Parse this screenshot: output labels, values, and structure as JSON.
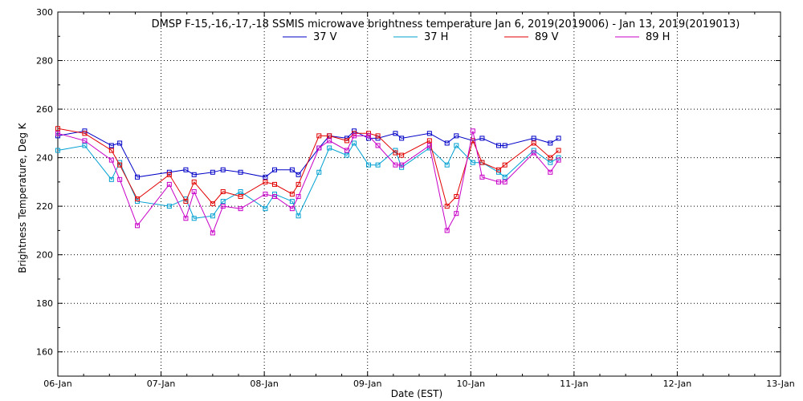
{
  "chart_data": {
    "type": "line",
    "title": "DMSP F-15,-16,-17,-18 SSMIS microwave brightness temperature Jan  6, 2019(2019006) - Jan 13, 2019(2019013)",
    "xlabel": "Date (EST)",
    "ylabel": "Brightness Temperature, Deg K",
    "xlim": [
      0,
      7
    ],
    "ylim": [
      150,
      300
    ],
    "x_unit": "days since 06-Jan-2019 00:00",
    "x_ticks": [
      0,
      1,
      2,
      3,
      4,
      5,
      6,
      7
    ],
    "x_tick_labels": [
      "06-Jan",
      "07-Jan",
      "08-Jan",
      "09-Jan",
      "10-Jan",
      "11-Jan",
      "12-Jan",
      "13-Jan"
    ],
    "y_ticks": [
      160,
      180,
      200,
      220,
      240,
      260,
      280,
      300
    ],
    "y_tick_labels": [
      "160",
      "180",
      "200",
      "220",
      "240",
      "260",
      "280",
      "300"
    ],
    "grid": true,
    "legend_position": "top-center",
    "series": [
      {
        "name": "37 V",
        "color": "#0000c8",
        "x": [
          0.0,
          0.26,
          0.52,
          0.6,
          0.77,
          1.08,
          1.24,
          1.32,
          1.5,
          1.6,
          1.77,
          2.01,
          2.1,
          2.27,
          2.33,
          2.53,
          2.63,
          2.8,
          2.87,
          3.01,
          3.1,
          3.27,
          3.33,
          3.6,
          3.77,
          3.86,
          4.02,
          4.11,
          4.27,
          4.33,
          4.61,
          4.77,
          4.85
        ],
        "y": [
          249,
          251,
          245,
          246,
          232,
          234,
          235,
          233,
          234,
          235,
          234,
          232,
          235,
          235,
          233,
          244,
          249,
          248,
          251,
          248,
          248,
          250,
          248,
          250,
          246,
          249,
          247,
          248,
          245,
          245,
          248,
          246,
          248
        ]
      },
      {
        "name": "37 H",
        "color": "#00a0d2",
        "x": [
          0.0,
          0.26,
          0.52,
          0.6,
          0.77,
          1.08,
          1.24,
          1.32,
          1.5,
          1.6,
          1.77,
          2.01,
          2.1,
          2.27,
          2.33,
          2.53,
          2.63,
          2.8,
          2.87,
          3.01,
          3.1,
          3.27,
          3.33,
          3.6,
          3.77,
          3.86,
          4.02,
          4.11,
          4.27,
          4.33,
          4.61,
          4.77,
          4.85
        ],
        "y": [
          243,
          245,
          231,
          238,
          222,
          220,
          223,
          215,
          216,
          222,
          226,
          219,
          225,
          222,
          216,
          234,
          244,
          241,
          246,
          237,
          237,
          243,
          236,
          244,
          237,
          245,
          238,
          238,
          234,
          232,
          243,
          238,
          240
        ]
      },
      {
        "name": "89 V",
        "color": "#e10000",
        "x": [
          0.0,
          0.26,
          0.52,
          0.6,
          0.77,
          1.08,
          1.24,
          1.32,
          1.5,
          1.6,
          1.77,
          2.01,
          2.1,
          2.27,
          2.33,
          2.53,
          2.63,
          2.8,
          2.87,
          3.01,
          3.1,
          3.27,
          3.33,
          3.6,
          3.77,
          3.86,
          4.02,
          4.11,
          4.27,
          4.33,
          4.61,
          4.77,
          4.85
        ],
        "y": [
          252,
          250,
          243,
          237,
          223,
          233,
          222,
          230,
          221,
          226,
          224,
          230,
          229,
          225,
          229,
          249,
          249,
          247,
          250,
          250,
          249,
          242,
          241,
          247,
          220,
          224,
          247,
          238,
          235,
          237,
          246,
          240,
          243
        ]
      },
      {
        "name": "89 H",
        "color": "#c800c8",
        "x": [
          0.0,
          0.26,
          0.52,
          0.6,
          0.77,
          1.08,
          1.24,
          1.32,
          1.5,
          1.6,
          1.77,
          2.01,
          2.1,
          2.27,
          2.33,
          2.53,
          2.63,
          2.8,
          2.87,
          3.01,
          3.1,
          3.27,
          3.33,
          3.6,
          3.77,
          3.86,
          4.02,
          4.11,
          4.27,
          4.33,
          4.61,
          4.77,
          4.85
        ],
        "y": [
          250,
          247,
          239,
          231,
          212,
          229,
          215,
          226,
          209,
          220,
          219,
          225,
          224,
          219,
          224,
          244,
          247,
          243,
          249,
          249,
          245,
          237,
          237,
          245,
          210,
          217,
          251,
          232,
          230,
          230,
          242,
          234,
          239
        ]
      }
    ]
  }
}
